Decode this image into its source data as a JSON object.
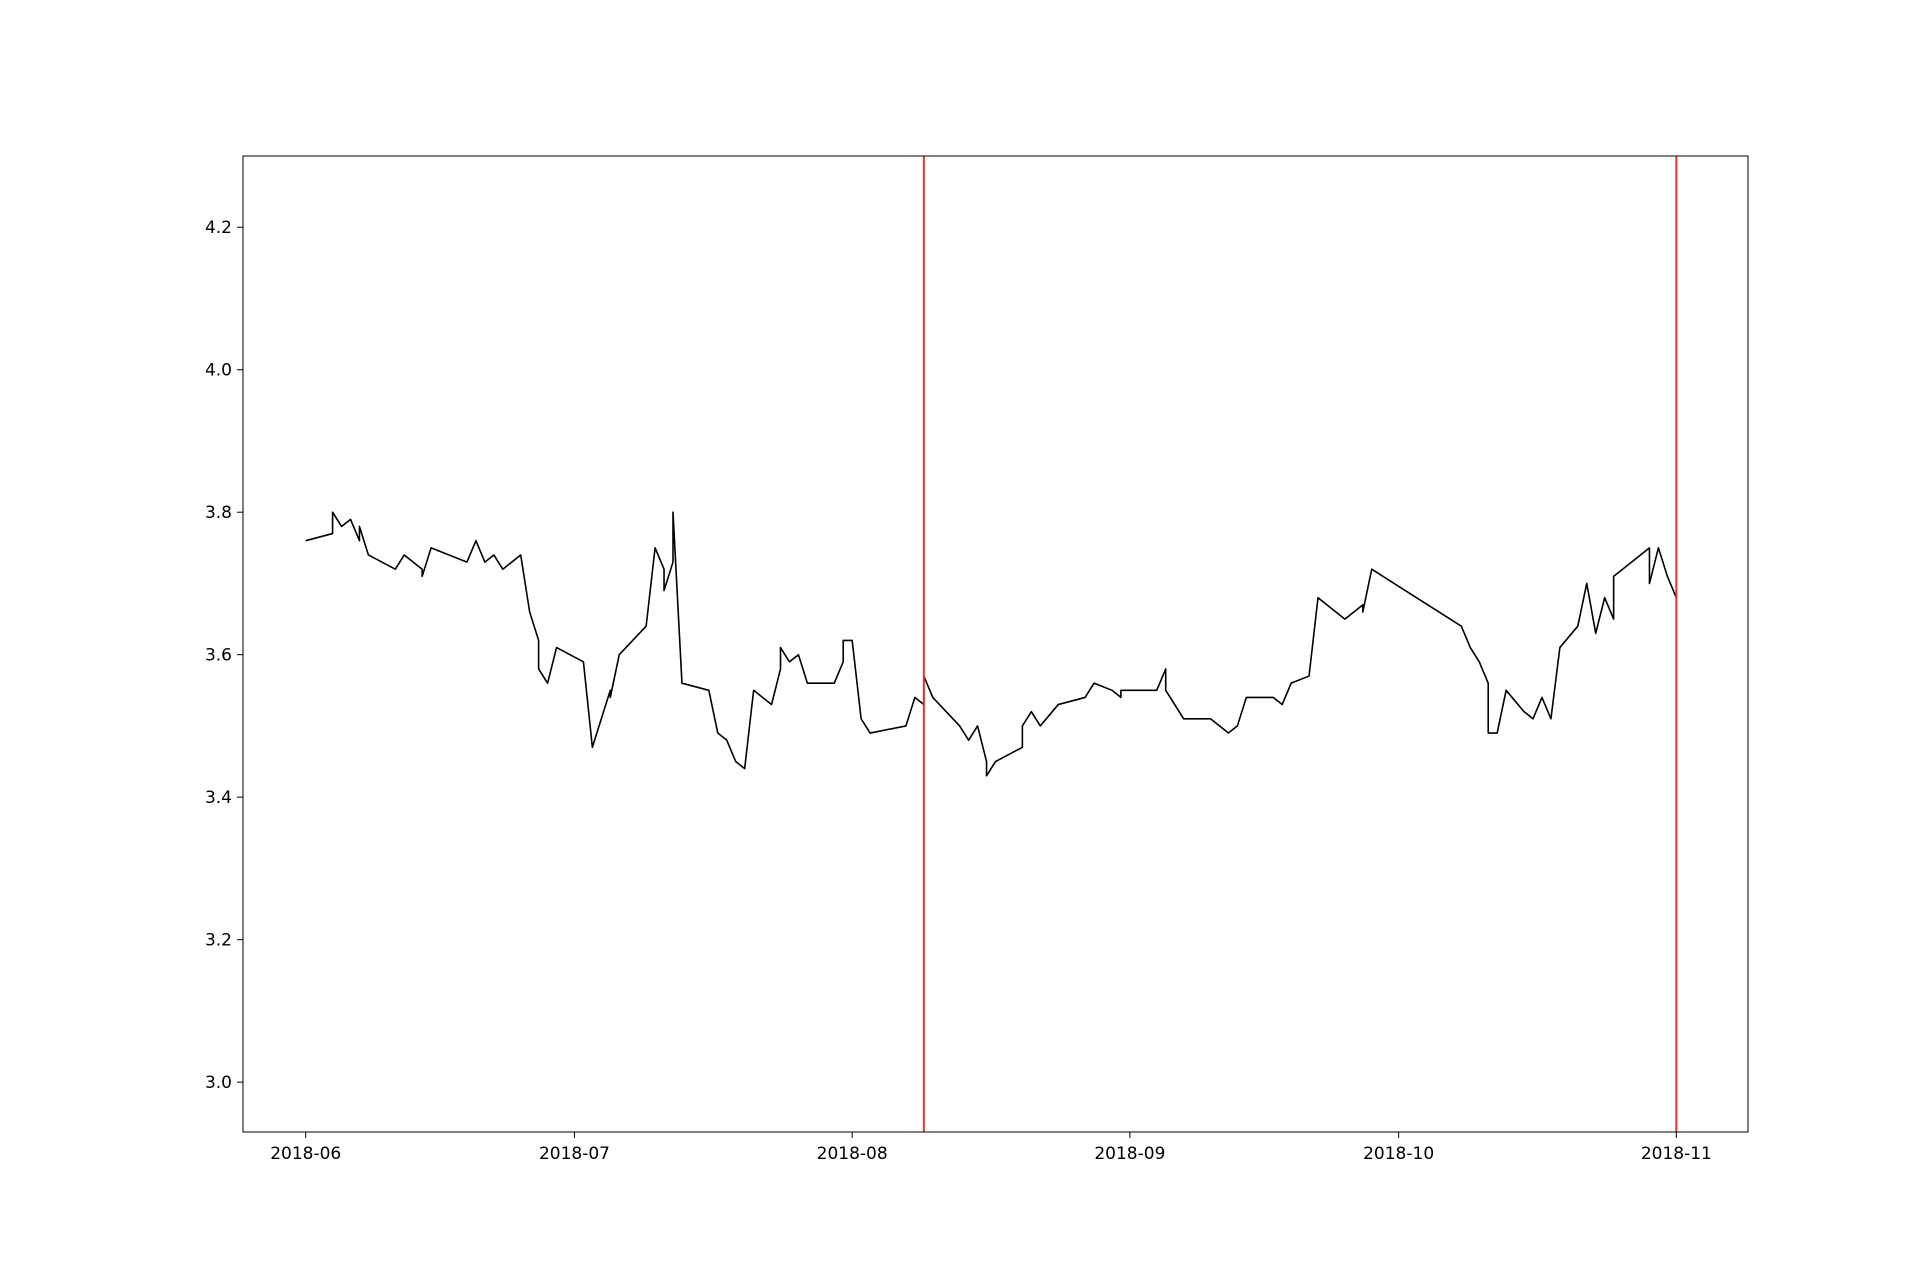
{
  "chart_data": {
    "type": "line",
    "x": [
      "2018-06-01",
      "2018-06-04",
      "2018-06-04",
      "2018-06-05",
      "2018-06-06",
      "2018-06-07",
      "2018-06-07",
      "2018-06-08",
      "2018-06-11",
      "2018-06-12",
      "2018-06-14",
      "2018-06-14",
      "2018-06-15",
      "2018-06-19",
      "2018-06-20",
      "2018-06-21",
      "2018-06-22",
      "2018-06-23",
      "2018-06-25",
      "2018-06-26",
      "2018-06-27",
      "2018-06-27",
      "2018-06-28",
      "2018-06-29",
      "2018-07-02",
      "2018-07-03",
      "2018-07-04",
      "2018-07-05",
      "2018-07-05",
      "2018-07-06",
      "2018-07-09",
      "2018-07-10",
      "2018-07-11",
      "2018-07-11",
      "2018-07-12",
      "2018-07-12",
      "2018-07-13",
      "2018-07-16",
      "2018-07-17",
      "2018-07-18",
      "2018-07-19",
      "2018-07-20",
      "2018-07-20",
      "2018-07-21",
      "2018-07-23",
      "2018-07-24",
      "2018-07-24",
      "2018-07-25",
      "2018-07-26",
      "2018-07-27",
      "2018-07-30",
      "2018-07-31",
      "2018-07-31",
      "2018-08-01",
      "2018-08-02",
      "2018-08-03",
      "2018-08-07",
      "2018-08-08",
      "2018-08-09",
      "2018-08-09",
      "2018-08-10",
      "2018-08-13",
      "2018-08-14",
      "2018-08-15",
      "2018-08-16",
      "2018-08-16",
      "2018-08-17",
      "2018-08-20",
      "2018-08-20",
      "2018-08-21",
      "2018-08-22",
      "2018-08-24",
      "2018-08-27",
      "2018-08-28",
      "2018-08-30",
      "2018-08-31",
      "2018-08-31",
      "2018-09-04",
      "2018-09-05",
      "2018-09-05",
      "2018-09-07",
      "2018-09-08",
      "2018-09-10",
      "2018-09-11",
      "2018-09-12",
      "2018-09-13",
      "2018-09-14",
      "2018-09-17",
      "2018-09-18",
      "2018-09-19",
      "2018-09-21",
      "2018-09-22",
      "2018-09-25",
      "2018-09-27",
      "2018-09-27",
      "2018-09-28",
      "2018-10-08",
      "2018-10-09",
      "2018-10-10",
      "2018-10-11",
      "2018-10-11",
      "2018-10-12",
      "2018-10-13",
      "2018-10-15",
      "2018-10-16",
      "2018-10-17",
      "2018-10-18",
      "2018-10-19",
      "2018-10-21",
      "2018-10-22",
      "2018-10-23",
      "2018-10-24",
      "2018-10-25",
      "2018-10-25",
      "2018-10-29",
      "2018-10-29",
      "2018-10-30",
      "2018-10-31",
      "2018-11-01"
    ],
    "series": [
      {
        "color": "#000000",
        "values": [
          3.76,
          3.77,
          3.8,
          3.78,
          3.79,
          3.76,
          3.78,
          3.74,
          3.72,
          3.74,
          3.72,
          3.71,
          3.75,
          3.73,
          3.76,
          3.73,
          3.74,
          3.72,
          3.74,
          3.66,
          3.62,
          3.58,
          3.56,
          3.61,
          3.59,
          3.47,
          3.51,
          3.55,
          3.54,
          3.6,
          3.64,
          3.75,
          3.72,
          3.69,
          3.73,
          3.8,
          3.56,
          3.55,
          3.49,
          3.48,
          3.45,
          3.44,
          3.44,
          3.55,
          3.53,
          3.58,
          3.61,
          3.59,
          3.6,
          3.56,
          3.56,
          3.59,
          3.62,
          3.62,
          3.51,
          3.49,
          3.5,
          3.54,
          3.53,
          3.57,
          3.54,
          3.5,
          3.48,
          3.5,
          3.45,
          3.43,
          3.45,
          3.47,
          3.5,
          3.52,
          3.5,
          3.53,
          3.54,
          3.56,
          3.55,
          3.54,
          3.55,
          3.55,
          3.58,
          3.55,
          3.51,
          3.51,
          3.51,
          3.5,
          3.49,
          3.5,
          3.54,
          3.54,
          3.53,
          3.56,
          3.57,
          3.68,
          3.65,
          3.67,
          3.66,
          3.72,
          3.64,
          3.61,
          3.59,
          3.56,
          3.49,
          3.49,
          3.55,
          3.52,
          3.51,
          3.54,
          3.51,
          3.61,
          3.64,
          3.7,
          3.63,
          3.68,
          3.65,
          3.71,
          3.75,
          3.7,
          3.75,
          3.71,
          3.68
        ]
      }
    ],
    "xlim": [
      "2018-05-25",
      "2018-11-09"
    ],
    "xticks": [
      {
        "value": "2018-06-01",
        "label": "2018-06"
      },
      {
        "value": "2018-07-01",
        "label": "2018-07"
      },
      {
        "value": "2018-08-01",
        "label": "2018-08"
      },
      {
        "value": "2018-09-01",
        "label": "2018-09"
      },
      {
        "value": "2018-10-01",
        "label": "2018-10"
      },
      {
        "value": "2018-11-01",
        "label": "2018-11"
      }
    ],
    "ylim": [
      2.93,
      4.3
    ],
    "yticks": [
      {
        "value": 3.0,
        "label": "3.0"
      },
      {
        "value": 3.2,
        "label": "3.2"
      },
      {
        "value": 3.4,
        "label": "3.4"
      },
      {
        "value": 3.6,
        "label": "3.6"
      },
      {
        "value": 3.8,
        "label": "3.8"
      },
      {
        "value": 4.0,
        "label": "4.0"
      },
      {
        "value": 4.2,
        "label": "4.2"
      }
    ],
    "vlines": [
      "2018-08-09",
      "2018-11-01"
    ],
    "vline_color": "#e8312a",
    "grid": false
  }
}
